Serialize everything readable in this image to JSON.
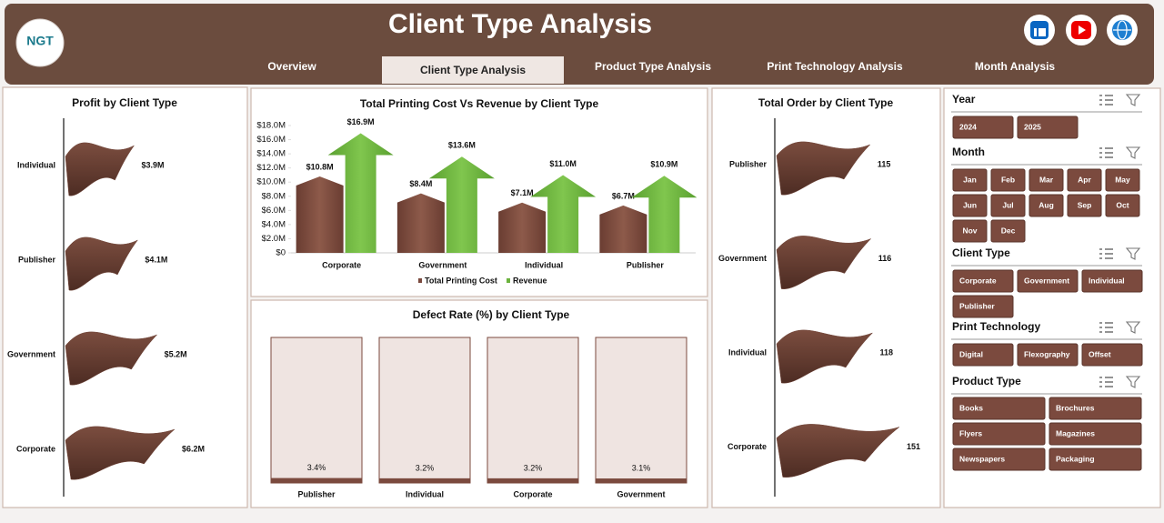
{
  "header": {
    "title": "Client Type Analysis",
    "logo": "NGT",
    "tabs": [
      "Overview",
      "Client Type Analysis",
      "Product Type Analysis",
      "Print Technology Analysis",
      "Month Analysis"
    ]
  },
  "chart_data": [
    {
      "type": "flag",
      "title": "Profit by Client Type",
      "categories": [
        "Individual",
        "Publisher",
        "Government",
        "Corporate"
      ],
      "values": [
        3.9,
        4.1,
        5.2,
        6.2
      ],
      "value_labels": [
        "$3.9M",
        "$4.1M",
        "$5.2M",
        "$6.2M"
      ],
      "color": "#6e4236"
    },
    {
      "type": "bar",
      "title": "Total Printing Cost Vs Revenue by Client Type",
      "categories": [
        "Corporate",
        "Government",
        "Individual",
        "Publisher"
      ],
      "series": [
        {
          "name": "Total Printing Cost",
          "color": "#7b4a3e",
          "values": [
            10800000,
            8400000,
            7100000,
            6700000
          ],
          "value_labels": [
            "$10.8M",
            "$8.4M",
            "$7.1M",
            "$6.7M"
          ]
        },
        {
          "name": "Revenue",
          "color": "#6cb33e",
          "values": [
            16900000,
            13600000,
            11000000,
            10900000
          ],
          "value_labels": [
            "$16.9M",
            "$13.6M",
            "$11.0M",
            "$10.9M"
          ]
        }
      ],
      "ylim": [
        0,
        18000000
      ],
      "yticks": [
        {
          "value": 0,
          "label": "$0"
        },
        {
          "value": 2000000,
          "label": "$2.0M"
        },
        {
          "value": 4000000,
          "label": "$4.0M"
        },
        {
          "value": 6000000,
          "label": "$6.0M"
        },
        {
          "value": 8000000,
          "label": "$8.0M"
        },
        {
          "value": 10000000,
          "label": "$10.0M"
        },
        {
          "value": 12000000,
          "label": "$12.0M"
        },
        {
          "value": 14000000,
          "label": "$14.0M"
        },
        {
          "value": 16000000,
          "label": "$16.0M"
        },
        {
          "value": 18000000,
          "label": "$18.0M"
        }
      ],
      "legend": "bottom"
    },
    {
      "type": "column",
      "title": "Defect Rate (%) by Client Type",
      "categories": [
        "Publisher",
        "Individual",
        "Corporate",
        "Government"
      ],
      "values": [
        3.4,
        3.2,
        3.2,
        3.1
      ],
      "value_labels": [
        "3.4%",
        "3.2%",
        "3.2%",
        "3.1%"
      ],
      "ylim": [
        0,
        100
      ],
      "color": "#7b4a3e"
    },
    {
      "type": "flag",
      "title": "Total Order by Client Type",
      "categories": [
        "Publisher",
        "Government",
        "Individual",
        "Corporate"
      ],
      "values": [
        115,
        116,
        118,
        151
      ],
      "color": "#6e4236"
    }
  ],
  "slicers": [
    {
      "title": "Year",
      "items": [
        "2024",
        "2025"
      ]
    },
    {
      "title": "Month",
      "items": [
        "Jan",
        "Feb",
        "Mar",
        "Apr",
        "May",
        "Jun",
        "Jul",
        "Aug",
        "Sep",
        "Oct",
        "Nov",
        "Dec"
      ]
    },
    {
      "title": "Client Type",
      "items": [
        "Corporate",
        "Government",
        "Individual",
        "Publisher"
      ]
    },
    {
      "title": "Print Technology",
      "items": [
        "Digital",
        "Flexography",
        "Offset"
      ]
    },
    {
      "title": "Product Type",
      "items": [
        "Books",
        "Brochures",
        "Flyers",
        "Magazines",
        "Newspapers",
        "Packaging"
      ]
    }
  ]
}
